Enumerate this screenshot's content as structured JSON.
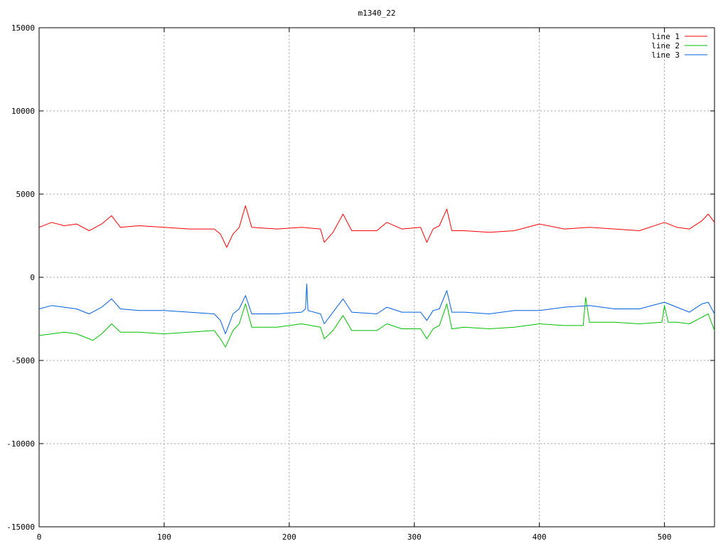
{
  "chart_data": {
    "type": "line",
    "title": "m1340_22",
    "xlabel": "",
    "ylabel": "",
    "xlim": [
      0,
      540
    ],
    "ylim": [
      -15000,
      15000
    ],
    "x_ticks": [
      0,
      100,
      200,
      300,
      400,
      500
    ],
    "y_ticks": [
      15000,
      10000,
      5000,
      0,
      -5000,
      -10000,
      -15000
    ],
    "grid": true,
    "legend_position": "top-right",
    "series": [
      {
        "name": "line 1",
        "color": "#ff0000",
        "x": [
          0,
          10,
          20,
          30,
          40,
          45,
          50,
          58,
          65,
          80,
          100,
          120,
          140,
          145,
          150,
          155,
          160,
          165,
          170,
          190,
          210,
          225,
          228,
          235,
          243,
          250,
          270,
          278,
          290,
          305,
          310,
          315,
          320,
          326,
          330,
          340,
          360,
          380,
          400,
          420,
          440,
          460,
          480,
          500,
          510,
          520,
          530,
          535,
          540
        ],
        "y": [
          3000,
          3300,
          3100,
          3200,
          2800,
          3000,
          3200,
          3700,
          3000,
          3100,
          3000,
          2900,
          2900,
          2600,
          1800,
          2600,
          3000,
          4300,
          3000,
          2900,
          3000,
          2900,
          2100,
          2700,
          3800,
          2800,
          2800,
          3300,
          2900,
          3000,
          2100,
          2900,
          3100,
          4100,
          2800,
          2800,
          2700,
          2800,
          3200,
          2900,
          3000,
          2900,
          2800,
          3300,
          3000,
          2900,
          3400,
          3800,
          3300
        ]
      },
      {
        "name": "line 2",
        "color": "#00c000",
        "x": [
          0,
          10,
          20,
          30,
          40,
          43,
          50,
          58,
          65,
          80,
          100,
          120,
          140,
          145,
          149,
          155,
          160,
          165,
          170,
          190,
          210,
          225,
          228,
          235,
          243,
          250,
          270,
          278,
          290,
          305,
          310,
          315,
          320,
          326,
          330,
          340,
          360,
          380,
          400,
          420,
          435,
          437,
          440,
          460,
          480,
          498,
          500,
          503,
          510,
          520,
          530,
          535,
          540
        ],
        "y": [
          -3500,
          -3400,
          -3300,
          -3400,
          -3700,
          -3800,
          -3400,
          -2800,
          -3300,
          -3300,
          -3400,
          -3300,
          -3200,
          -3700,
          -4200,
          -3200,
          -2800,
          -1600,
          -3000,
          -3000,
          -2800,
          -3000,
          -3700,
          -3200,
          -2300,
          -3200,
          -3200,
          -2800,
          -3100,
          -3100,
          -3700,
          -3100,
          -2900,
          -1600,
          -3100,
          -3000,
          -3100,
          -3000,
          -2800,
          -2900,
          -2900,
          -1200,
          -2700,
          -2700,
          -2800,
          -2700,
          -1700,
          -2700,
          -2700,
          -2800,
          -2400,
          -2200,
          -3200
        ]
      },
      {
        "name": "line 3",
        "color": "#0060e0",
        "x": [
          0,
          10,
          20,
          30,
          40,
          45,
          50,
          58,
          65,
          80,
          100,
          120,
          140,
          145,
          149,
          155,
          160,
          165,
          170,
          190,
          210,
          213,
          214,
          215,
          225,
          228,
          235,
          243,
          250,
          270,
          278,
          290,
          305,
          310,
          315,
          320,
          326,
          330,
          340,
          360,
          380,
          400,
          420,
          440,
          460,
          480,
          500,
          510,
          520,
          530,
          535,
          540
        ],
        "y": [
          -1900,
          -1700,
          -1800,
          -1900,
          -2200,
          -2000,
          -1800,
          -1300,
          -1900,
          -2000,
          -2000,
          -2100,
          -2200,
          -2600,
          -3400,
          -2200,
          -1900,
          -1100,
          -2200,
          -2200,
          -2100,
          -1900,
          -400,
          -2000,
          -2200,
          -2800,
          -2100,
          -1300,
          -2100,
          -2200,
          -1800,
          -2100,
          -2100,
          -2600,
          -2000,
          -1900,
          -800,
          -2100,
          -2100,
          -2200,
          -2000,
          -2000,
          -1800,
          -1700,
          -1900,
          -1900,
          -1500,
          -1800,
          -2100,
          -1600,
          -1500,
          -2200
        ]
      }
    ]
  }
}
